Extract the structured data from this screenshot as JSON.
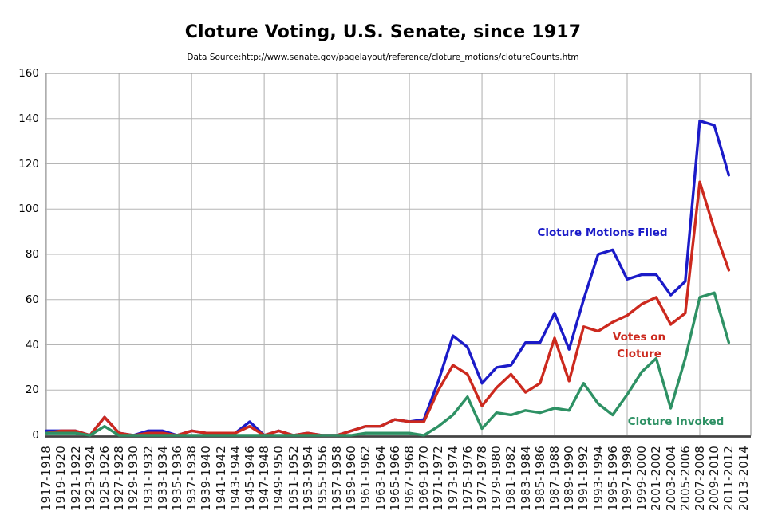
{
  "header": {
    "title": "Cloture Voting, U.S. Senate, since 1917",
    "subtitle": "Data Source:http://www.senate.gov/pagelayout/reference/cloture_motions/clotureCounts.htm"
  },
  "chart_data": {
    "type": "line",
    "title": "Cloture Voting, U.S. Senate, since 1917",
    "subtitle": "Data Source:http://www.senate.gov/pagelayout/reference/cloture_motions/clotureCounts.htm",
    "categories": [
      "1917-1918",
      "1919-1920",
      "1921-1922",
      "1923-1924",
      "1925-1926",
      "1927-1928",
      "1929-1930",
      "1931-1932",
      "1933-1934",
      "1935-1936",
      "1937-1938",
      "1939-1940",
      "1941-1942",
      "1943-1944",
      "1945-1946",
      "1947-1948",
      "1949-1950",
      "1951-1952",
      "1953-1954",
      "1955-1956",
      "1957-1958",
      "1959-1960",
      "1961-1962",
      "1963-1964",
      "1965-1966",
      "1967-1968",
      "1969-1970",
      "1971-1972",
      "1973-1974",
      "1975-1976",
      "1977-1978",
      "1979-1980",
      "1981-1982",
      "1983-1984",
      "1985-1986",
      "1987-1988",
      "1989-1990",
      "1991-1992",
      "1993-1994",
      "1995-1996",
      "1997-1998",
      "1999-2000",
      "2001-2002",
      "2003-2004",
      "2005-2006",
      "2007-2008",
      "2009-2010",
      "2011-2012",
      "2013-2014"
    ],
    "series": [
      {
        "name": "Cloture Motions Filed",
        "color": "#1b1bc8",
        "values": [
          2,
          2,
          2,
          0,
          8,
          1,
          0,
          2,
          2,
          0,
          2,
          1,
          1,
          1,
          6,
          0,
          2,
          0,
          1,
          0,
          0,
          2,
          4,
          4,
          7,
          6,
          7,
          24,
          44,
          39,
          23,
          30,
          31,
          41,
          41,
          54,
          38,
          60,
          80,
          82,
          69,
          71,
          71,
          62,
          68,
          139,
          137,
          115,
          null
        ]
      },
      {
        "name": "Votes on Cloture",
        "color": "#cc291e",
        "values": [
          1,
          2,
          2,
          0,
          8,
          1,
          0,
          1,
          1,
          0,
          2,
          1,
          1,
          1,
          4,
          0,
          2,
          0,
          1,
          0,
          0,
          2,
          4,
          4,
          7,
          6,
          6,
          20,
          31,
          27,
          13,
          21,
          27,
          19,
          23,
          43,
          24,
          48,
          46,
          50,
          53,
          58,
          61,
          49,
          54,
          112,
          91,
          73,
          null
        ]
      },
      {
        "name": "Cloture Invoked",
        "color": "#2e9164",
        "values": [
          1,
          1,
          1,
          0,
          4,
          0,
          0,
          0,
          0,
          0,
          0,
          0,
          0,
          0,
          0,
          0,
          0,
          0,
          0,
          0,
          0,
          0,
          1,
          1,
          1,
          1,
          0,
          4,
          9,
          17,
          3,
          10,
          9,
          11,
          10,
          12,
          11,
          23,
          14,
          9,
          18,
          28,
          34,
          12,
          34,
          61,
          63,
          41,
          null
        ]
      }
    ],
    "xlabel": "",
    "ylabel": "",
    "ylim": [
      0,
      160
    ],
    "yticks": [
      0,
      20,
      40,
      60,
      80,
      100,
      120,
      140,
      160
    ],
    "grid": true,
    "x_gridline_every": 5,
    "legend_position": "inline annotations on chart",
    "annotations": {
      "filed": "Cloture Motions Filed",
      "votes_line1": "Votes on",
      "votes_line2": "Cloture",
      "invoked": "Cloture Invoked"
    },
    "colors": {
      "filed_blue": "#1b1bc8",
      "votes_red": "#cc291e",
      "invoked_green": "#2e9164",
      "gridline": "#b5b5b5",
      "axis": "#444444"
    }
  }
}
